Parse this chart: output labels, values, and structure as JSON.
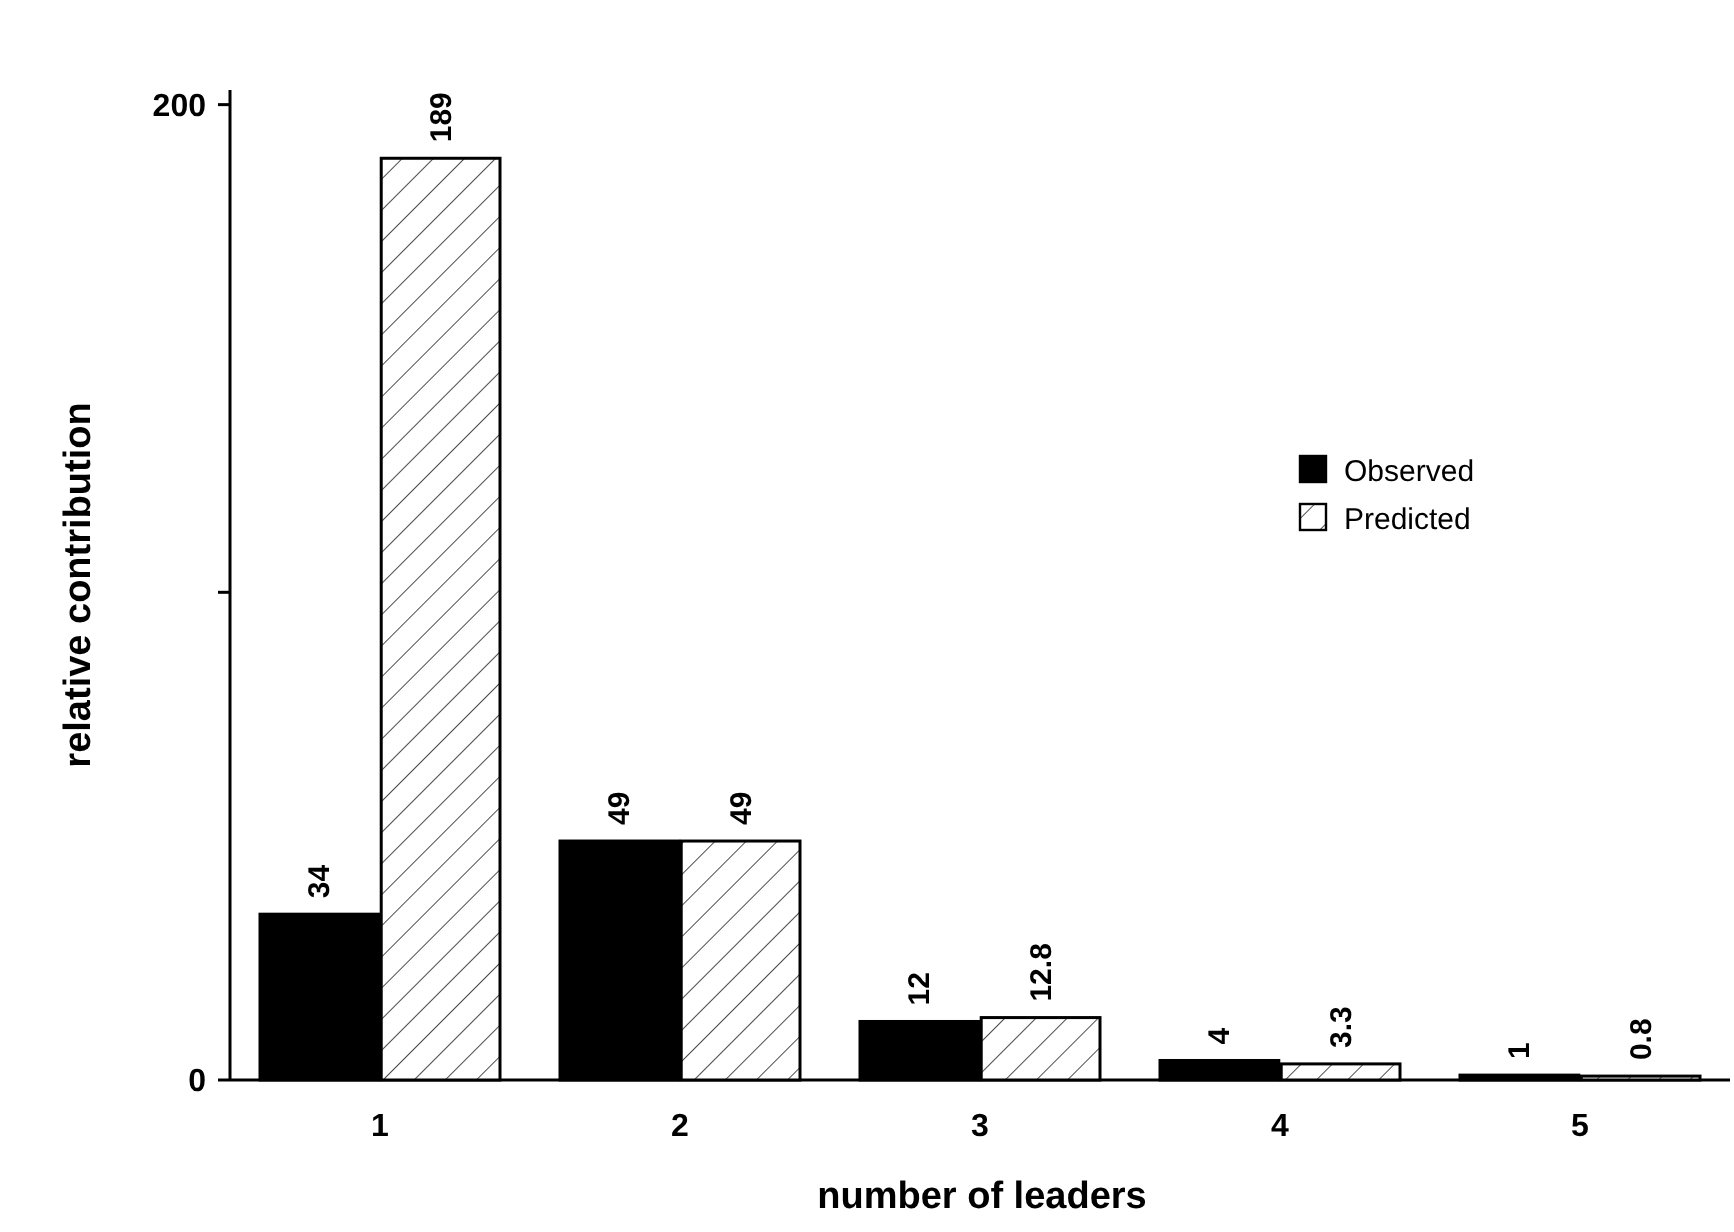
{
  "chart_data": {
    "type": "bar",
    "xlabel": "number of leaders",
    "ylabel": "relative contribution",
    "categories": [
      "1",
      "2",
      "3",
      "4",
      "5"
    ],
    "series": [
      {
        "name": "Observed",
        "color": "#000000",
        "values": [
          34,
          49,
          12,
          4,
          1
        ]
      },
      {
        "name": "Predicted",
        "color": "#ffffff",
        "values": [
          189,
          49,
          12.8,
          3.3,
          0.8
        ]
      }
    ],
    "ylim": [
      0,
      203
    ],
    "yticks": [
      0,
      {
        "value": 100,
        "label": null
      },
      200
    ],
    "data_labels": true,
    "legend": "right",
    "grid": false
  }
}
